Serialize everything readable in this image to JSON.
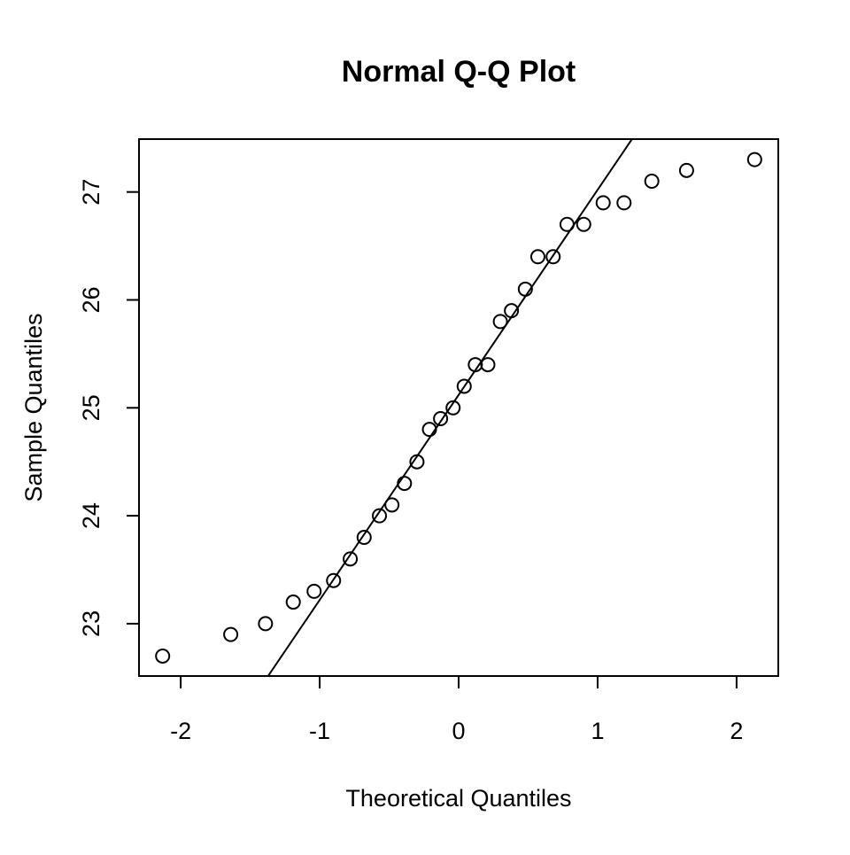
{
  "chart_data": {
    "type": "qq",
    "title": "Normal Q-Q Plot",
    "x_label": "Theoretical Quantiles",
    "y_label": "Sample Quantiles",
    "x": [
      -2.13,
      -1.64,
      -1.39,
      -1.19,
      -1.04,
      -0.9,
      -0.78,
      -0.68,
      -0.57,
      -0.48,
      -0.39,
      -0.3,
      -0.21,
      -0.13,
      -0.04,
      0.04,
      0.12,
      0.21,
      0.3,
      0.38,
      0.48,
      0.57,
      0.68,
      0.78,
      0.9,
      1.04,
      1.19,
      1.39,
      1.64,
      2.13
    ],
    "values": [
      22.7,
      22.9,
      23.0,
      23.2,
      23.3,
      23.4,
      23.6,
      23.8,
      24.0,
      24.1,
      24.3,
      24.5,
      24.8,
      24.9,
      25.0,
      25.2,
      25.4,
      25.4,
      25.8,
      25.9,
      26.1,
      26.4,
      26.4,
      26.7,
      26.7,
      26.9,
      26.9,
      27.1,
      27.2,
      27.3
    ],
    "line": {
      "intercept": 25.12,
      "slope": 1.9
    },
    "xlim": [
      -2.3,
      2.3
    ],
    "ylim": [
      22.515,
      27.49
    ],
    "xticks": [
      -2,
      -1,
      0,
      1,
      2
    ],
    "yticks": [
      23,
      24,
      25,
      26,
      27
    ]
  }
}
